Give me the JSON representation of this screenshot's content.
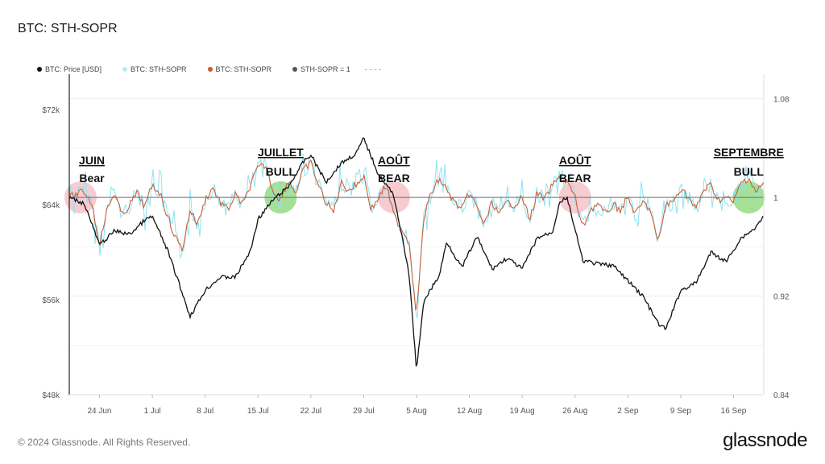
{
  "title": "BTC: STH-SOPR",
  "footer": "© 2024 Glassnode. All Rights Reserved.",
  "brand": "glassnode",
  "legend": [
    {
      "label": "BTC: Price [USD]",
      "color": "#111111"
    },
    {
      "label": "BTC: STH-SOPR",
      "color": "#b9ecf5"
    },
    {
      "label": "BTC: STH-SOPR",
      "color": "#d2562f"
    },
    {
      "label": "STH-SOPR = 1",
      "color": "#555555"
    }
  ],
  "colors": {
    "price": "#111111",
    "sopr_raw": "#8fe3f2",
    "sopr_smooth": "#c8613a",
    "baseline": "#777777",
    "bear": "#f4b6bd",
    "bull": "#7ed36a"
  },
  "chart_data": {
    "type": "line",
    "x_ticks": [
      "24 Jun",
      "1 Jul",
      "8 Jul",
      "15 Jul",
      "22 Jul",
      "29 Jul",
      "5 Aug",
      "12 Aug",
      "19 Aug",
      "26 Aug",
      "2 Sep",
      "9 Sep",
      "16 Sep"
    ],
    "x_range": [
      "2024-06-20",
      "2024-09-20"
    ],
    "left_axis": {
      "label": "",
      "ticks": [
        "$72k",
        "$64k",
        "$56k",
        "$48k"
      ],
      "range": [
        48000,
        75000
      ]
    },
    "right_axis": {
      "label": "",
      "ticks": [
        "1.08",
        "1",
        "0.92",
        "0.84"
      ],
      "range": [
        0.84,
        1.1
      ]
    },
    "series": [
      {
        "name": "BTC: Price [USD]",
        "axis": "left",
        "points": [
          [
            "2024-06-20",
            64600
          ],
          [
            "2024-06-22",
            64100
          ],
          [
            "2024-06-24",
            60600
          ],
          [
            "2024-06-26",
            61800
          ],
          [
            "2024-06-28",
            61500
          ],
          [
            "2024-06-30",
            62700
          ],
          [
            "2024-07-01",
            63000
          ],
          [
            "2024-07-03",
            60200
          ],
          [
            "2024-07-05",
            56500
          ],
          [
            "2024-07-06",
            54600
          ],
          [
            "2024-07-08",
            56800
          ],
          [
            "2024-07-10",
            57900
          ],
          [
            "2024-07-12",
            57900
          ],
          [
            "2024-07-14",
            60100
          ],
          [
            "2024-07-15",
            62800
          ],
          [
            "2024-07-17",
            64400
          ],
          [
            "2024-07-19",
            65500
          ],
          [
            "2024-07-21",
            67600
          ],
          [
            "2024-07-22",
            68200
          ],
          [
            "2024-07-24",
            65900
          ],
          [
            "2024-07-26",
            67500
          ],
          [
            "2024-07-28",
            68300
          ],
          [
            "2024-07-29",
            69600
          ],
          [
            "2024-07-31",
            66500
          ],
          [
            "2024-08-02",
            64800
          ],
          [
            "2024-08-03",
            61500
          ],
          [
            "2024-08-04",
            58200
          ],
          [
            "2024-08-05",
            50100
          ],
          [
            "2024-08-06",
            56000
          ],
          [
            "2024-08-08",
            58000
          ],
          [
            "2024-08-09",
            60900
          ],
          [
            "2024-08-11",
            58700
          ],
          [
            "2024-08-13",
            61300
          ],
          [
            "2024-08-15",
            58600
          ],
          [
            "2024-08-17",
            59500
          ],
          [
            "2024-08-19",
            58600
          ],
          [
            "2024-08-21",
            61200
          ],
          [
            "2024-08-23",
            61700
          ],
          [
            "2024-08-24",
            64300
          ],
          [
            "2024-08-25",
            64500
          ],
          [
            "2024-08-27",
            59300
          ],
          [
            "2024-08-29",
            59000
          ],
          [
            "2024-08-31",
            58900
          ],
          [
            "2024-09-02",
            57600
          ],
          [
            "2024-09-04",
            56300
          ],
          [
            "2024-09-06",
            54000
          ],
          [
            "2024-09-07",
            53500
          ],
          [
            "2024-09-09",
            56800
          ],
          [
            "2024-09-11",
            57400
          ],
          [
            "2024-09-13",
            60000
          ],
          [
            "2024-09-15",
            59200
          ],
          [
            "2024-09-17",
            61200
          ],
          [
            "2024-09-19",
            62100
          ],
          [
            "2024-09-20",
            63200
          ]
        ]
      },
      {
        "name": "BTC: STH-SOPR",
        "axis": "right",
        "points": [
          [
            "2024-06-20",
            1.0
          ],
          [
            "2024-06-22",
            1.005
          ],
          [
            "2024-06-23",
            0.995
          ],
          [
            "2024-06-24",
            0.962
          ],
          [
            "2024-06-25",
            0.99
          ],
          [
            "2024-06-26",
            1.004
          ],
          [
            "2024-06-27",
            0.985
          ],
          [
            "2024-06-28",
            0.994
          ],
          [
            "2024-06-29",
            1.004
          ],
          [
            "2024-06-30",
            0.992
          ],
          [
            "2024-07-01",
            1.01
          ],
          [
            "2024-07-02",
            1.004
          ],
          [
            "2024-07-03",
            0.985
          ],
          [
            "2024-07-04",
            0.968
          ],
          [
            "2024-07-05",
            0.958
          ],
          [
            "2024-07-06",
            0.99
          ],
          [
            "2024-07-07",
            0.978
          ],
          [
            "2024-07-08",
            0.998
          ],
          [
            "2024-07-09",
            1.008
          ],
          [
            "2024-07-10",
            0.996
          ],
          [
            "2024-07-11",
            0.99
          ],
          [
            "2024-07-12",
            1.002
          ],
          [
            "2024-07-13",
            0.994
          ],
          [
            "2024-07-14",
            1.01
          ],
          [
            "2024-07-15",
            1.024
          ],
          [
            "2024-07-16",
            1.026
          ],
          [
            "2024-07-17",
            1.005
          ],
          [
            "2024-07-18",
            0.998
          ],
          [
            "2024-07-19",
            1.014
          ],
          [
            "2024-07-20",
            1.004
          ],
          [
            "2024-07-21",
            1.022
          ],
          [
            "2024-07-22",
            1.028
          ],
          [
            "2024-07-23",
            1.01
          ],
          [
            "2024-07-24",
            0.996
          ],
          [
            "2024-07-25",
            0.988
          ],
          [
            "2024-07-26",
            1.012
          ],
          [
            "2024-07-27",
            1.006
          ],
          [
            "2024-07-28",
            1.01
          ],
          [
            "2024-07-29",
            1.018
          ],
          [
            "2024-07-30",
            0.99
          ],
          [
            "2024-07-31",
            1.0
          ],
          [
            "2024-08-01",
            1.01
          ],
          [
            "2024-08-02",
            0.985
          ],
          [
            "2024-08-03",
            0.975
          ],
          [
            "2024-08-04",
            0.964
          ],
          [
            "2024-08-05",
            0.905
          ],
          [
            "2024-08-06",
            0.985
          ],
          [
            "2024-08-07",
            1.004
          ],
          [
            "2024-08-08",
            1.015
          ],
          [
            "2024-08-09",
            1.006
          ],
          [
            "2024-08-10",
            0.996
          ],
          [
            "2024-08-11",
            0.99
          ],
          [
            "2024-08-12",
            1.004
          ],
          [
            "2024-08-13",
            0.992
          ],
          [
            "2024-08-14",
            0.978
          ],
          [
            "2024-08-15",
            0.996
          ],
          [
            "2024-08-16",
            0.986
          ],
          [
            "2024-08-17",
            0.996
          ],
          [
            "2024-08-18",
            0.994
          ],
          [
            "2024-08-19",
            1.0
          ],
          [
            "2024-08-20",
            0.982
          ],
          [
            "2024-08-21",
            1.004
          ],
          [
            "2024-08-22",
            0.998
          ],
          [
            "2024-08-23",
            1.01
          ],
          [
            "2024-08-24",
            1.016
          ],
          [
            "2024-08-25",
            1.012
          ],
          [
            "2024-08-26",
            1.0
          ],
          [
            "2024-08-27",
            0.975
          ],
          [
            "2024-08-28",
            0.99
          ],
          [
            "2024-08-29",
            0.995
          ],
          [
            "2024-08-30",
            0.986
          ],
          [
            "2024-08-31",
            0.994
          ],
          [
            "2024-09-01",
            0.99
          ],
          [
            "2024-09-02",
            1.0
          ],
          [
            "2024-09-03",
            0.986
          ],
          [
            "2024-09-04",
            0.996
          ],
          [
            "2024-09-05",
            0.99
          ],
          [
            "2024-09-06",
            0.962
          ],
          [
            "2024-09-07",
            0.994
          ],
          [
            "2024-09-08",
            0.996
          ],
          [
            "2024-09-09",
            1.008
          ],
          [
            "2024-09-10",
            1.0
          ],
          [
            "2024-09-11",
            0.99
          ],
          [
            "2024-09-12",
            1.006
          ],
          [
            "2024-09-13",
            1.01
          ],
          [
            "2024-09-14",
            0.998
          ],
          [
            "2024-09-15",
            1.0
          ],
          [
            "2024-09-16",
            0.996
          ],
          [
            "2024-09-17",
            1.012
          ],
          [
            "2024-09-18",
            1.016
          ],
          [
            "2024-09-19",
            1.004
          ],
          [
            "2024-09-20",
            1.012
          ]
        ]
      }
    ],
    "baseline": {
      "name": "STH-SOPR = 1",
      "value": 1
    },
    "annotations": [
      {
        "lines": [
          "JUIN",
          "Bear"
        ],
        "date": "2024-06-20",
        "kind": "bear"
      },
      {
        "lines": [
          "JUILLET",
          "BULL"
        ],
        "date": "2024-07-18",
        "kind": "bull"
      },
      {
        "lines": [
          "AOÛT",
          "BEAR"
        ],
        "date": "2024-08-02",
        "kind": "bear"
      },
      {
        "lines": [
          "AOÛT",
          "BEAR"
        ],
        "date": "2024-08-26",
        "kind": "bear"
      },
      {
        "lines": [
          "SEPTEMBRE",
          "BULL"
        ],
        "date": "2024-09-18",
        "kind": "bull"
      }
    ]
  }
}
